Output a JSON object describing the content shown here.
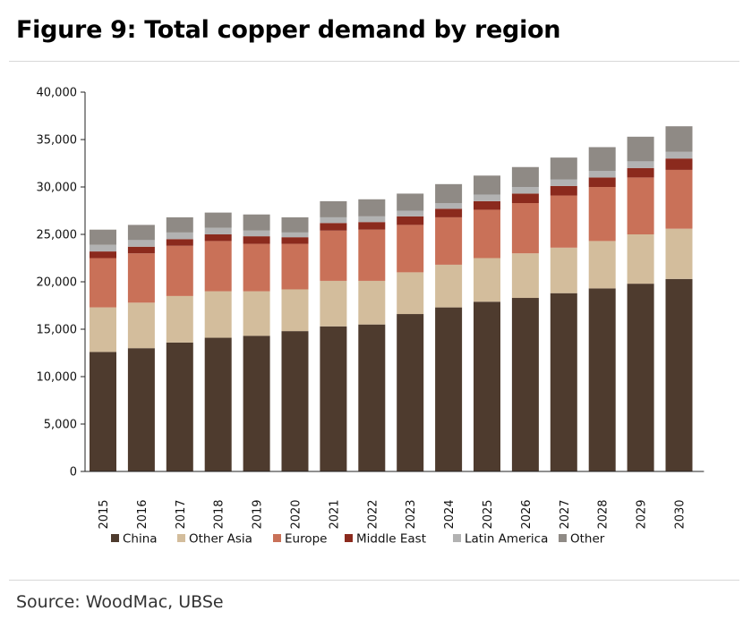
{
  "title": "Figure 9: Total copper demand by region",
  "source": "Source: WoodMac, UBSe",
  "chart_data": {
    "type": "bar",
    "stacked": true,
    "categories": [
      "2015",
      "2016",
      "2017",
      "2018",
      "2019",
      "2020",
      "2021",
      "2022",
      "2023",
      "2024",
      "2025",
      "2026",
      "2027",
      "2028",
      "2029",
      "2030"
    ],
    "ylim": [
      0,
      40000
    ],
    "yticks": [
      0,
      5000,
      10000,
      15000,
      20000,
      25000,
      30000,
      35000,
      40000
    ],
    "ytick_labels": [
      "0",
      "5,000",
      "10,000",
      "15,000",
      "20,000",
      "25,000",
      "30,000",
      "35,000",
      "40,000"
    ],
    "xlabel": "",
    "ylabel": "",
    "grid": false,
    "legend_position": "bottom",
    "series": [
      {
        "name": "China",
        "color": "#4e3b2e",
        "values": [
          12600,
          13000,
          13600,
          14100,
          14300,
          14800,
          15300,
          15500,
          16600,
          17300,
          17900,
          18300,
          18800,
          19300,
          19800,
          20300
        ]
      },
      {
        "name": "Other Asia",
        "color": "#d3bd9c",
        "values": [
          4700,
          4800,
          4900,
          4900,
          4700,
          4400,
          4800,
          4600,
          4400,
          4500,
          4600,
          4700,
          4800,
          5000,
          5200,
          5300
        ]
      },
      {
        "name": "Europe",
        "color": "#c97158",
        "values": [
          5200,
          5200,
          5300,
          5300,
          5000,
          4800,
          5300,
          5400,
          5000,
          5000,
          5100,
          5300,
          5500,
          5700,
          6000,
          6200
        ]
      },
      {
        "name": "Middle East",
        "color": "#8b2a1d",
        "values": [
          700,
          700,
          700,
          700,
          800,
          700,
          800,
          800,
          900,
          900,
          900,
          1000,
          1000,
          1000,
          1000,
          1200
        ]
      },
      {
        "name": "Latin America",
        "color": "#b2b2b2",
        "values": [
          700,
          700,
          700,
          700,
          600,
          500,
          600,
          600,
          600,
          600,
          700,
          700,
          700,
          700,
          700,
          700
        ]
      },
      {
        "name": "Other",
        "color": "#8f8a85",
        "values": [
          1600,
          1600,
          1600,
          1600,
          1700,
          1600,
          1700,
          1800,
          1800,
          2000,
          2000,
          2100,
          2300,
          2500,
          2600,
          2700
        ]
      }
    ]
  }
}
